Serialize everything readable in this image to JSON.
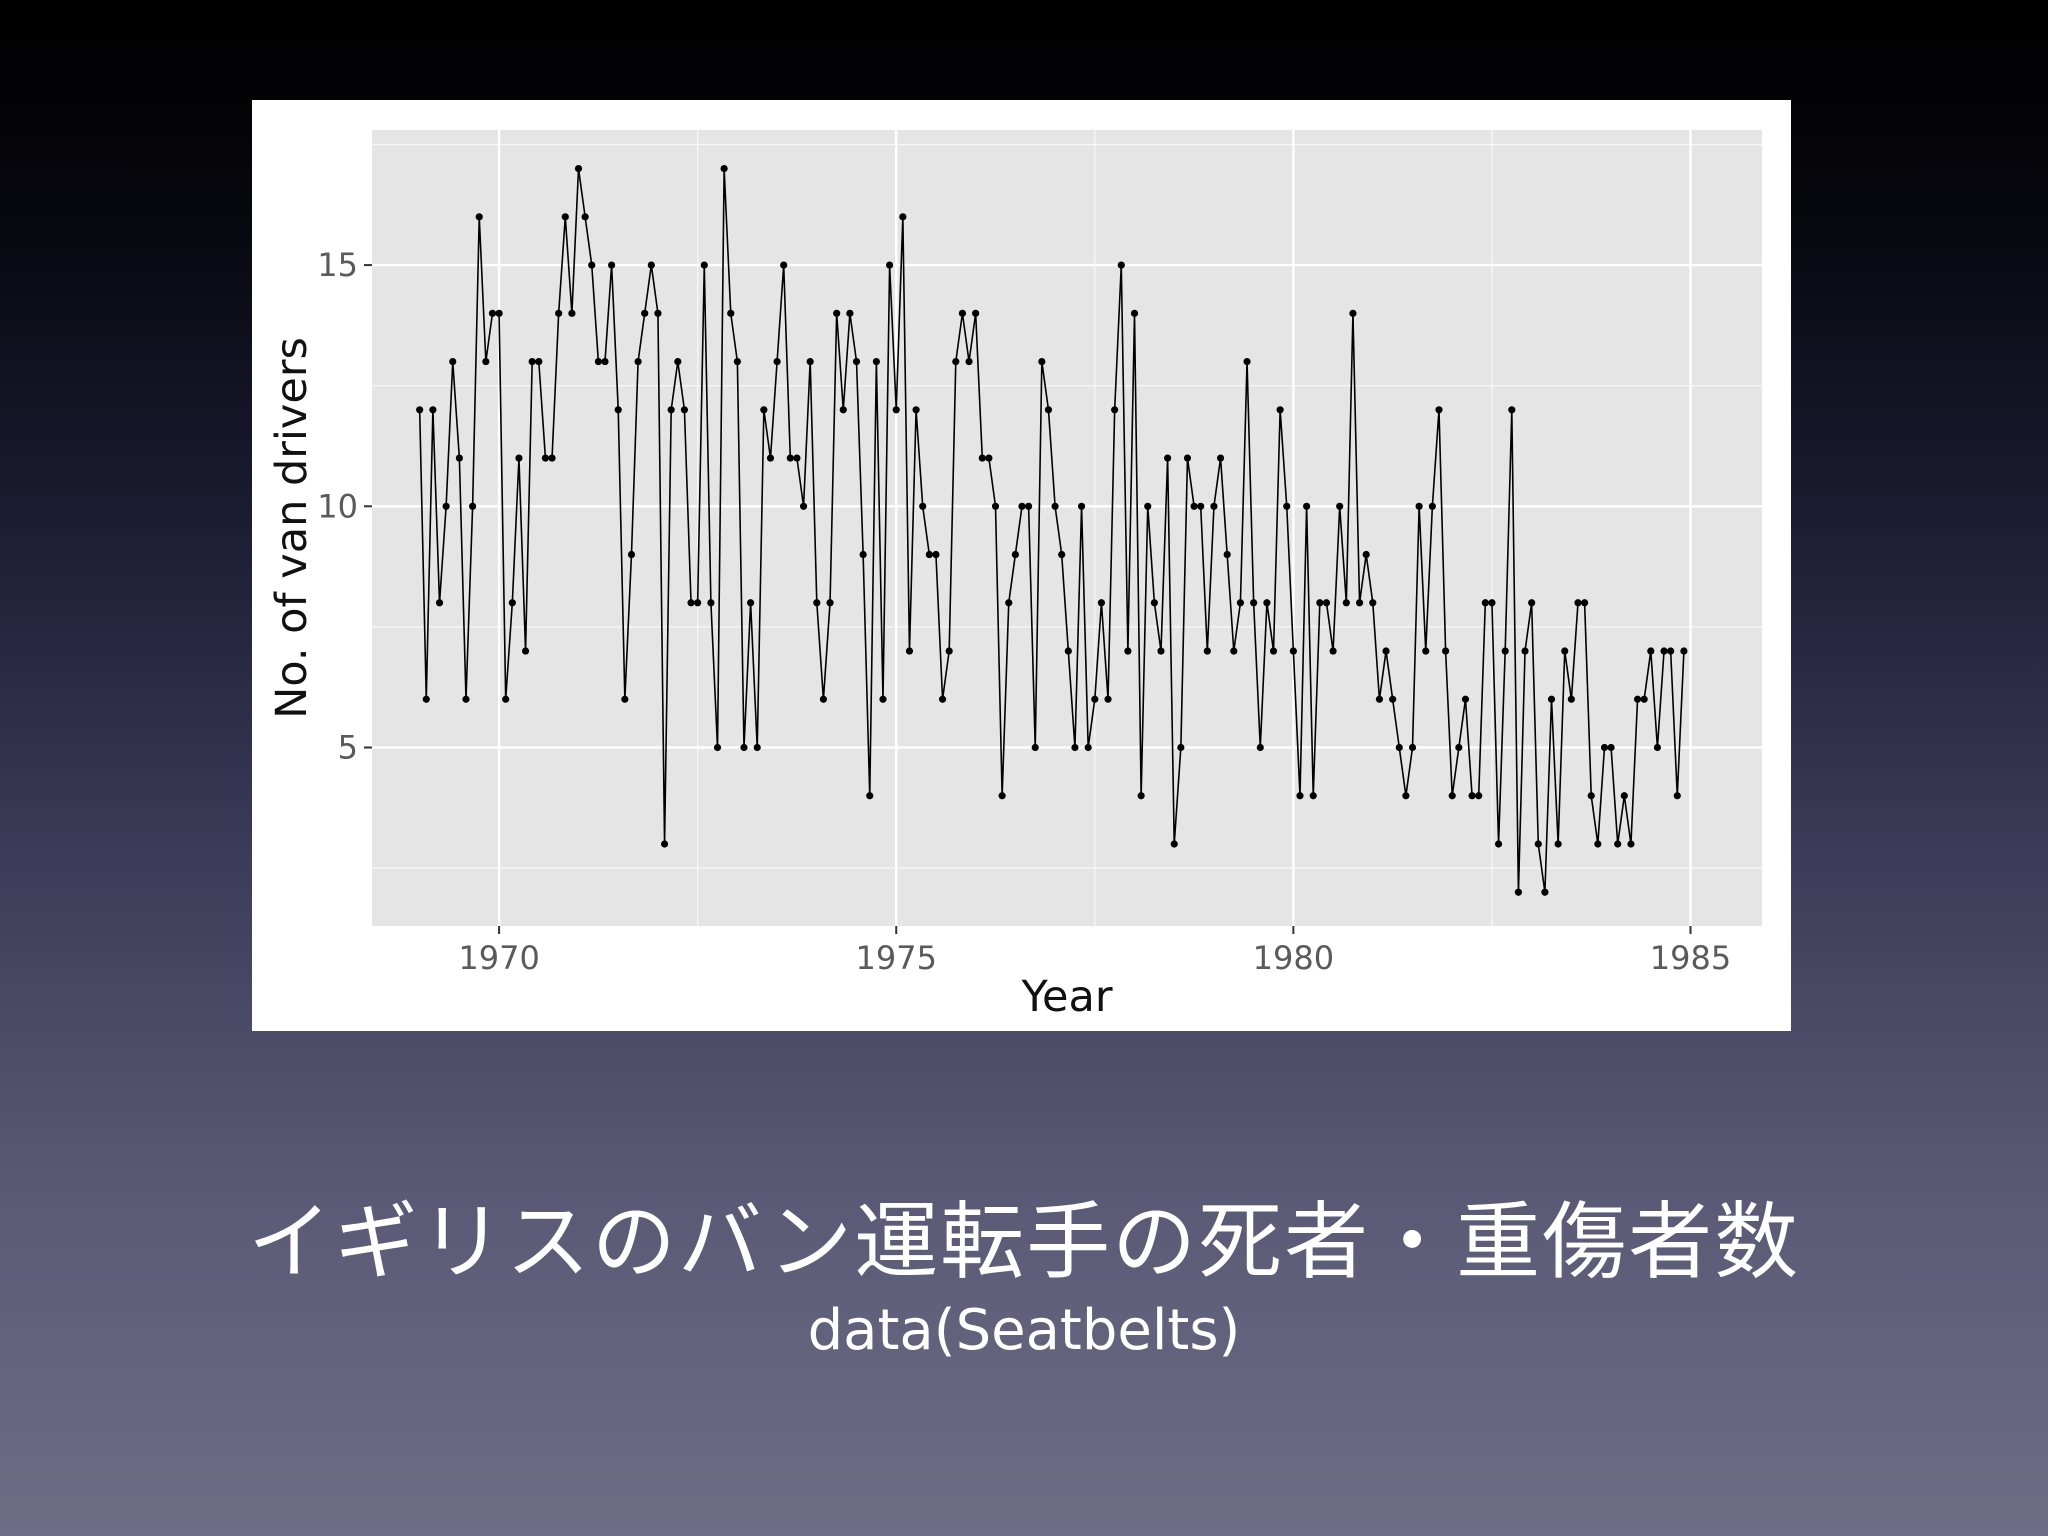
{
  "slide": {
    "title": "イギリスのバン運転手の死者・重傷者数",
    "subtitle": "data(Seatbelts)"
  },
  "chart_data": {
    "type": "line",
    "xlabel": "Year",
    "ylabel": "No. of van drivers",
    "xlim": [
      1968.4,
      1985.9
    ],
    "ylim": [
      1.3,
      17.8
    ],
    "xticks": [
      1970,
      1975,
      1980,
      1985
    ],
    "yticks": [
      5,
      10,
      15
    ],
    "x_start": 1969.0,
    "x_step_months": 1,
    "grid": true,
    "legend": "none",
    "colors": {
      "panel": "#e5e5e5",
      "grid": "#ffffff",
      "line": "#000000"
    },
    "series": [
      {
        "values": [
          12,
          6,
          12,
          8,
          10,
          13,
          11,
          6,
          10,
          16,
          13,
          14,
          14,
          6,
          8,
          11,
          7,
          13,
          13,
          11,
          11,
          14,
          16,
          14,
          17,
          16,
          15,
          13,
          13,
          15,
          12,
          6,
          9,
          13,
          14,
          15,
          14,
          3,
          12,
          13,
          12,
          8,
          8,
          15,
          8,
          5,
          17,
          14,
          13,
          5,
          8,
          5,
          12,
          11,
          13,
          15,
          11,
          11,
          10,
          13,
          8,
          6,
          8,
          14,
          12,
          14,
          13,
          9,
          4,
          13,
          6,
          15,
          12,
          16,
          7,
          12,
          10,
          9,
          9,
          6,
          7,
          13,
          14,
          13,
          14,
          11,
          11,
          10,
          4,
          8,
          9,
          10,
          10,
          5,
          13,
          12,
          10,
          9,
          7,
          5,
          10,
          5,
          6,
          8,
          6,
          12,
          15,
          7,
          14,
          4,
          10,
          8,
          7,
          11,
          3,
          5,
          11,
          10,
          10,
          7,
          10,
          11,
          9,
          7,
          8,
          13,
          8,
          5,
          8,
          7,
          12,
          10,
          7,
          4,
          10,
          4,
          8,
          8,
          7,
          10,
          8,
          14,
          8,
          9,
          8,
          6,
          7,
          6,
          5,
          4,
          5,
          10,
          7,
          10,
          12,
          7,
          4,
          5,
          6,
          4,
          4,
          8,
          8,
          3,
          7,
          12,
          2,
          7,
          8,
          3,
          2,
          6,
          3,
          7,
          6,
          8,
          8,
          4,
          3,
          5,
          5,
          3,
          4,
          3,
          6,
          6,
          7,
          5,
          7,
          7,
          4,
          7
        ]
      }
    ]
  }
}
